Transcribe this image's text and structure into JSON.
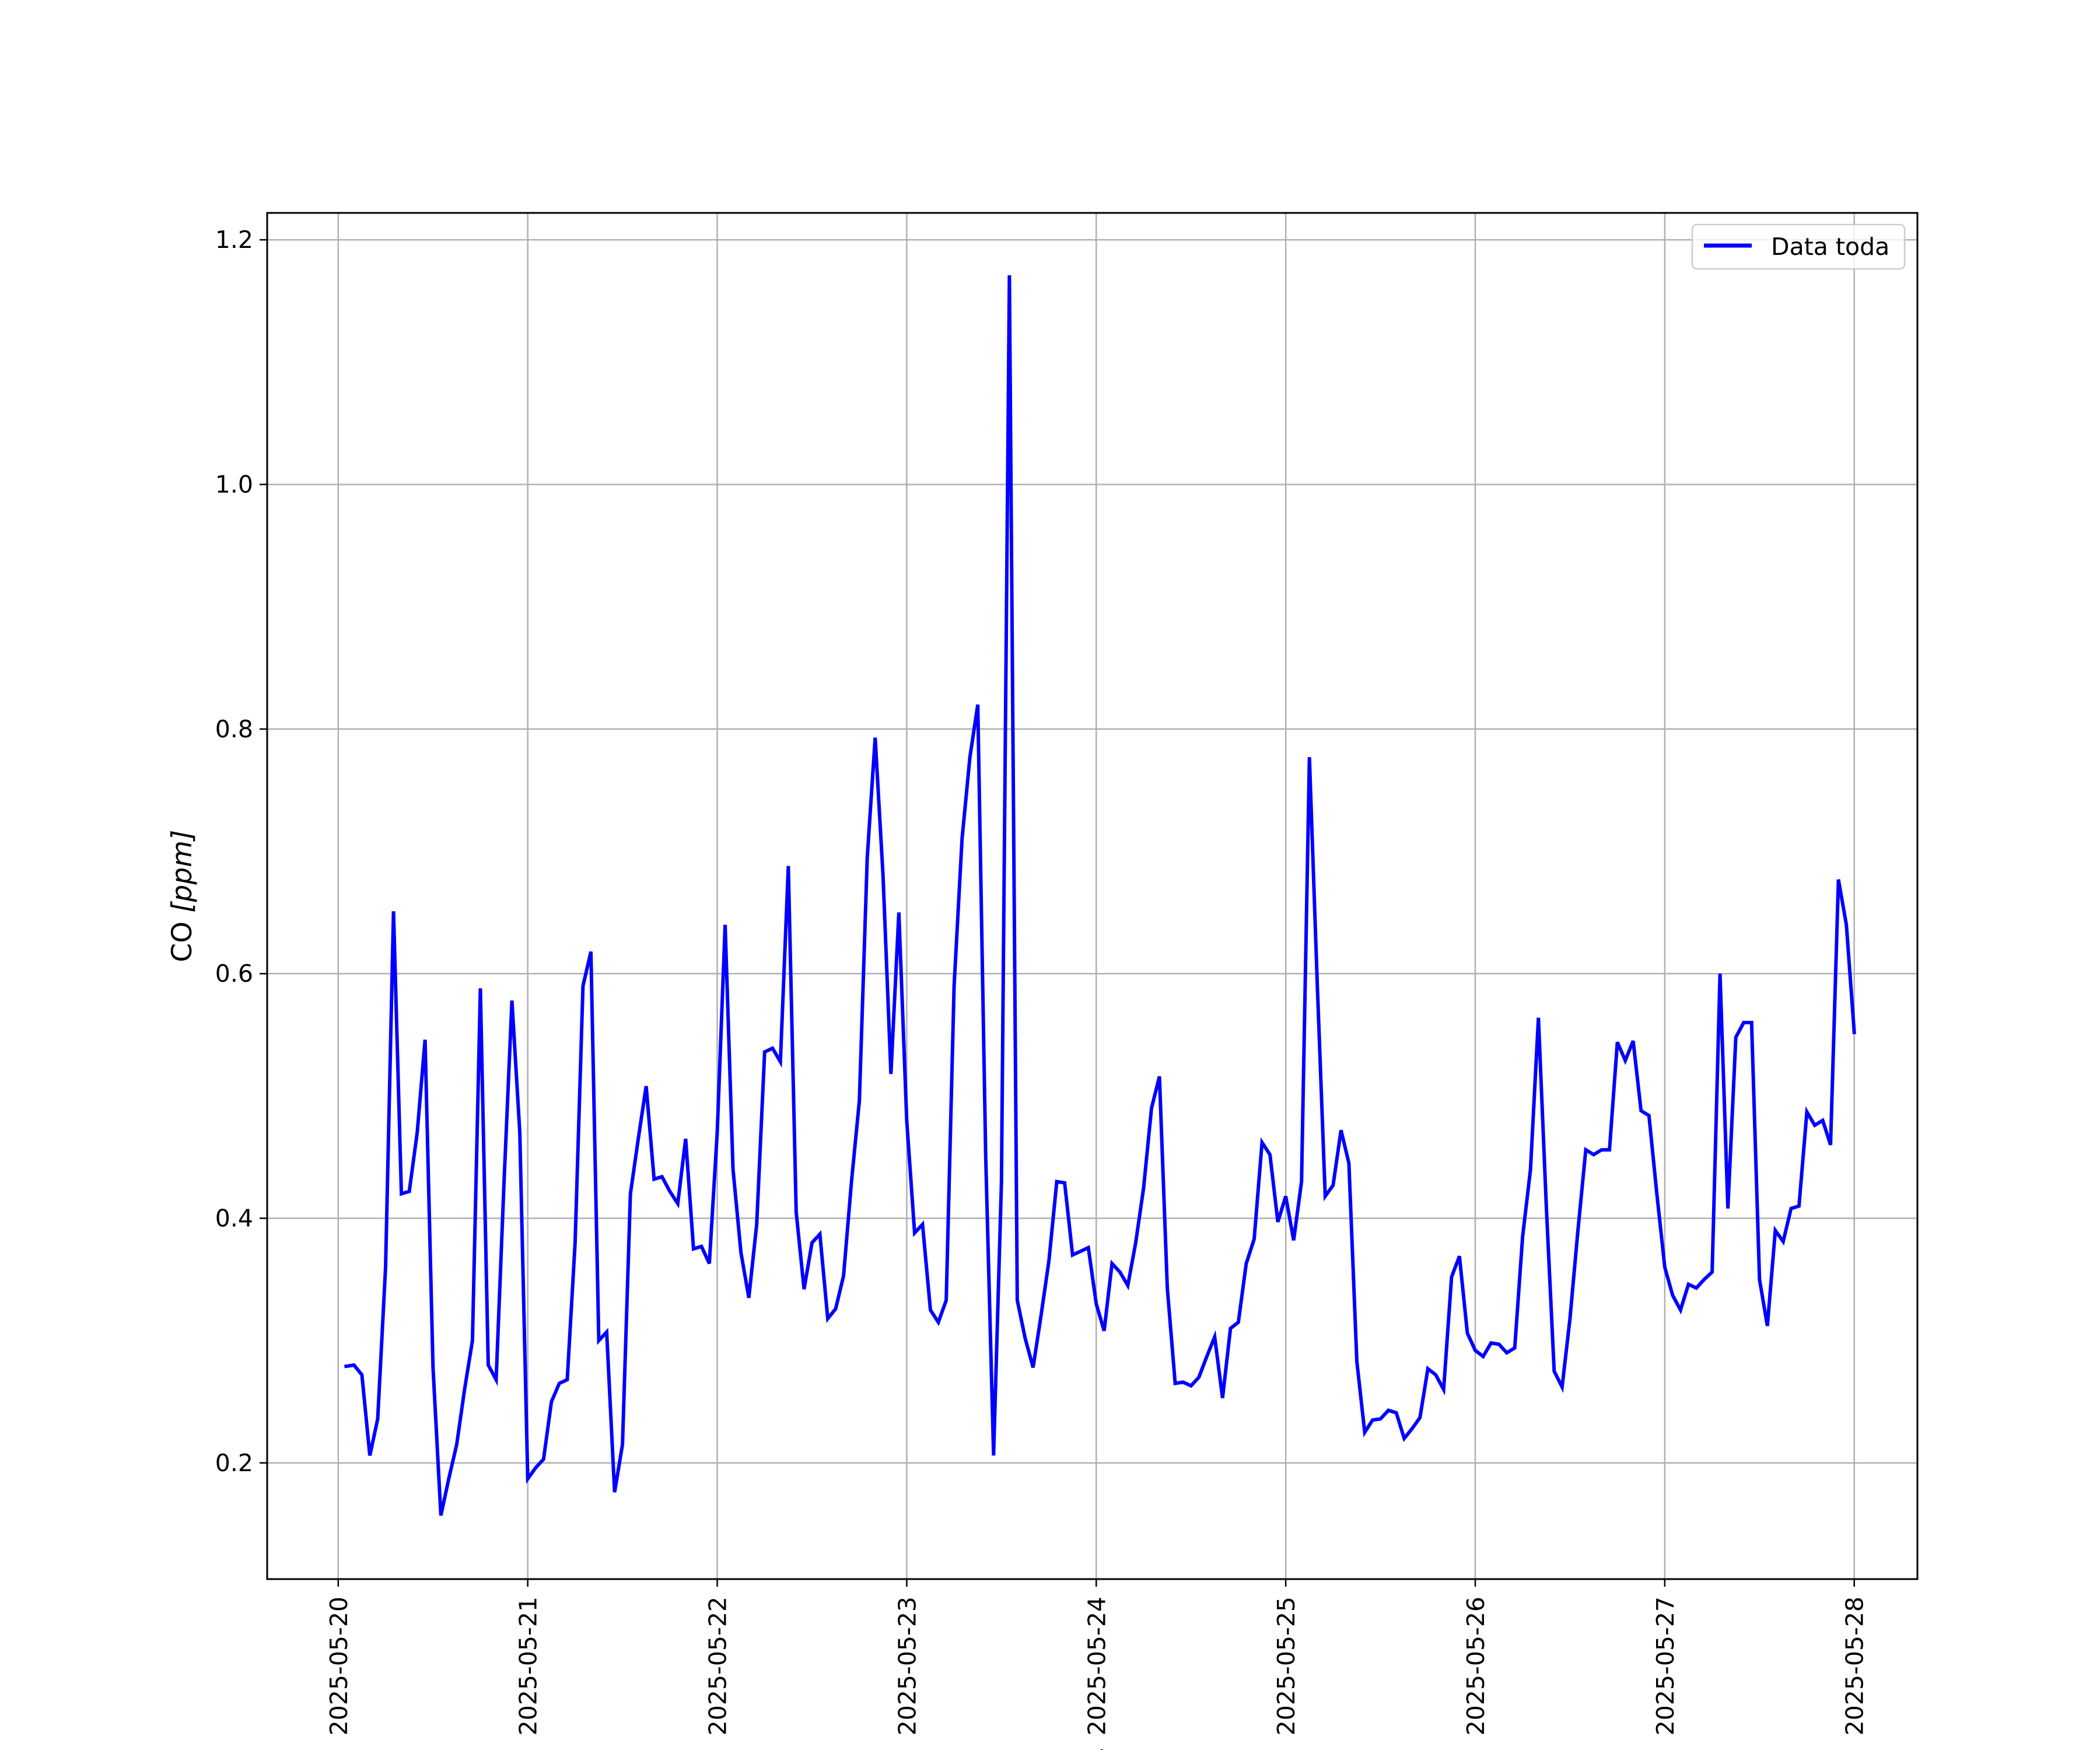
{
  "chart_data": {
    "type": "line",
    "title": "",
    "xlabel": "Fecha",
    "ylabel": "CO [ppm]",
    "ylabel_prefix": "CO ",
    "ylabel_unit": "[ppm]",
    "x_ticks": [
      "2025-05-20",
      "2025-05-21",
      "2025-05-22",
      "2025-05-23",
      "2025-05-24",
      "2025-05-25",
      "2025-05-26",
      "2025-05-27",
      "2025-05-28"
    ],
    "y_ticks": [
      "0.2",
      "0.4",
      "0.6",
      "0.8",
      "1.0",
      "1.2"
    ],
    "xlim": [
      "2025-05-19 15:00",
      "2025-05-28 08:00"
    ],
    "ylim": [
      0.105,
      1.222
    ],
    "grid": true,
    "legend_position": "top-right",
    "series": [
      {
        "name": "Data toda",
        "color": "#0000ff",
        "x": [
          "2025-05-20 01:00",
          "2025-05-20 02:00",
          "2025-05-20 03:00",
          "2025-05-20 04:00",
          "2025-05-20 05:00",
          "2025-05-20 06:00",
          "2025-05-20 07:00",
          "2025-05-20 08:00",
          "2025-05-20 09:00",
          "2025-05-20 10:00",
          "2025-05-20 11:00",
          "2025-05-20 12:00",
          "2025-05-20 13:00",
          "2025-05-20 14:00",
          "2025-05-20 15:00",
          "2025-05-20 16:00",
          "2025-05-20 17:00",
          "2025-05-20 18:00",
          "2025-05-20 19:00",
          "2025-05-20 20:00",
          "2025-05-20 21:00",
          "2025-05-20 22:00",
          "2025-05-20 23:00",
          "2025-05-21 00:00",
          "2025-05-21 01:00",
          "2025-05-21 02:00",
          "2025-05-21 03:00",
          "2025-05-21 04:00",
          "2025-05-21 05:00",
          "2025-05-21 06:00",
          "2025-05-21 07:00",
          "2025-05-21 08:00",
          "2025-05-21 09:00",
          "2025-05-21 10:00",
          "2025-05-21 11:00",
          "2025-05-21 12:00",
          "2025-05-21 13:00",
          "2025-05-21 14:00",
          "2025-05-21 15:00",
          "2025-05-21 16:00",
          "2025-05-21 17:00",
          "2025-05-21 18:00",
          "2025-05-21 19:00",
          "2025-05-21 20:00",
          "2025-05-21 21:00",
          "2025-05-21 22:00",
          "2025-05-21 23:00",
          "2025-05-22 00:00",
          "2025-05-22 01:00",
          "2025-05-22 02:00",
          "2025-05-22 03:00",
          "2025-05-22 04:00",
          "2025-05-22 05:00",
          "2025-05-22 06:00",
          "2025-05-22 07:00",
          "2025-05-22 08:00",
          "2025-05-22 09:00",
          "2025-05-22 10:00",
          "2025-05-22 11:00",
          "2025-05-22 12:00",
          "2025-05-22 13:00",
          "2025-05-22 14:00",
          "2025-05-22 15:00",
          "2025-05-22 16:00",
          "2025-05-22 17:00",
          "2025-05-22 18:00",
          "2025-05-22 19:00",
          "2025-05-22 20:00",
          "2025-05-22 21:00",
          "2025-05-22 22:00",
          "2025-05-22 23:00",
          "2025-05-23 00:00",
          "2025-05-23 01:00",
          "2025-05-23 02:00",
          "2025-05-23 03:00",
          "2025-05-23 04:00",
          "2025-05-23 05:00",
          "2025-05-23 06:00",
          "2025-05-23 07:00",
          "2025-05-23 08:00",
          "2025-05-23 09:00",
          "2025-05-23 10:00",
          "2025-05-23 11:00",
          "2025-05-23 12:00",
          "2025-05-23 13:00",
          "2025-05-23 14:00",
          "2025-05-23 15:00",
          "2025-05-23 16:00",
          "2025-05-23 17:00",
          "2025-05-23 18:00",
          "2025-05-23 19:00",
          "2025-05-23 20:00",
          "2025-05-23 21:00",
          "2025-05-23 22:00",
          "2025-05-23 23:00",
          "2025-05-24 00:00",
          "2025-05-24 01:00",
          "2025-05-24 02:00",
          "2025-05-24 03:00",
          "2025-05-24 04:00",
          "2025-05-24 05:00",
          "2025-05-24 06:00",
          "2025-05-24 07:00",
          "2025-05-24 08:00",
          "2025-05-24 09:00",
          "2025-05-24 10:00",
          "2025-05-24 11:00",
          "2025-05-24 12:00",
          "2025-05-24 13:00",
          "2025-05-24 14:00",
          "2025-05-24 15:00",
          "2025-05-24 16:00",
          "2025-05-24 17:00",
          "2025-05-24 18:00",
          "2025-05-24 19:00",
          "2025-05-24 20:00",
          "2025-05-24 21:00",
          "2025-05-24 22:00",
          "2025-05-24 23:00",
          "2025-05-25 00:00",
          "2025-05-25 01:00",
          "2025-05-25 02:00",
          "2025-05-25 03:00",
          "2025-05-25 04:00",
          "2025-05-25 05:00",
          "2025-05-25 06:00",
          "2025-05-25 07:00",
          "2025-05-25 08:00",
          "2025-05-25 09:00",
          "2025-05-25 10:00",
          "2025-05-25 11:00",
          "2025-05-25 12:00",
          "2025-05-25 13:00",
          "2025-05-25 14:00",
          "2025-05-25 15:00",
          "2025-05-25 16:00",
          "2025-05-25 17:00",
          "2025-05-25 18:00",
          "2025-05-25 19:00",
          "2025-05-25 20:00",
          "2025-05-25 21:00",
          "2025-05-25 22:00",
          "2025-05-25 23:00",
          "2025-05-26 00:00",
          "2025-05-26 01:00",
          "2025-05-26 02:00",
          "2025-05-26 03:00",
          "2025-05-26 04:00",
          "2025-05-26 05:00",
          "2025-05-26 06:00",
          "2025-05-26 07:00",
          "2025-05-26 08:00",
          "2025-05-26 09:00",
          "2025-05-26 10:00",
          "2025-05-26 11:00",
          "2025-05-26 12:00",
          "2025-05-26 13:00",
          "2025-05-26 14:00",
          "2025-05-26 15:00",
          "2025-05-26 16:00",
          "2025-05-26 17:00",
          "2025-05-26 18:00",
          "2025-05-26 19:00",
          "2025-05-26 20:00",
          "2025-05-26 21:00",
          "2025-05-26 22:00",
          "2025-05-26 23:00",
          "2025-05-27 00:00",
          "2025-05-27 01:00",
          "2025-05-27 02:00",
          "2025-05-27 03:00",
          "2025-05-27 04:00",
          "2025-05-27 05:00",
          "2025-05-27 06:00",
          "2025-05-27 07:00",
          "2025-05-27 08:00",
          "2025-05-27 09:00",
          "2025-05-27 10:00",
          "2025-05-27 11:00",
          "2025-05-27 12:00",
          "2025-05-27 13:00",
          "2025-05-27 14:00",
          "2025-05-27 15:00",
          "2025-05-27 16:00",
          "2025-05-27 17:00",
          "2025-05-27 18:00",
          "2025-05-27 19:00",
          "2025-05-27 20:00",
          "2025-05-27 21:00",
          "2025-05-27 22:00",
          "2025-05-27 23:00",
          "2025-05-28 00:00"
        ],
        "y": [
          0.279,
          0.28,
          0.272,
          0.206,
          0.236,
          0.36,
          0.651,
          0.42,
          0.422,
          0.47,
          0.546,
          0.278,
          0.157,
          0.187,
          0.215,
          0.26,
          0.3,
          0.588,
          0.28,
          0.268,
          0.43,
          0.578,
          0.47,
          0.187,
          0.196,
          0.203,
          0.25,
          0.265,
          0.268,
          0.38,
          0.59,
          0.618,
          0.3,
          0.307,
          0.176,
          0.215,
          0.42,
          0.465,
          0.508,
          0.432,
          0.434,
          0.422,
          0.412,
          0.465,
          0.375,
          0.377,
          0.363,
          0.47,
          0.64,
          0.44,
          0.372,
          0.335,
          0.395,
          0.536,
          0.539,
          0.528,
          0.688,
          0.405,
          0.342,
          0.38,
          0.387,
          0.318,
          0.326,
          0.353,
          0.43,
          0.496,
          0.695,
          0.793,
          0.68,
          0.518,
          0.65,
          0.48,
          0.388,
          0.395,
          0.325,
          0.315,
          0.333,
          0.59,
          0.71,
          0.777,
          0.82,
          0.45,
          0.206,
          0.43,
          1.171,
          0.333,
          0.302,
          0.278,
          0.32,
          0.365,
          0.43,
          0.429,
          0.37,
          0.373,
          0.376,
          0.33,
          0.308,
          0.363,
          0.356,
          0.345,
          0.38,
          0.425,
          0.49,
          0.516,
          0.343,
          0.265,
          0.266,
          0.263,
          0.27,
          0.287,
          0.303,
          0.253,
          0.31,
          0.315,
          0.363,
          0.383,
          0.462,
          0.452,
          0.397,
          0.418,
          0.382,
          0.43,
          0.777,
          0.59,
          0.418,
          0.427,
          0.472,
          0.445,
          0.283,
          0.225,
          0.235,
          0.236,
          0.243,
          0.241,
          0.22,
          0.228,
          0.237,
          0.277,
          0.272,
          0.26,
          0.352,
          0.369,
          0.306,
          0.292,
          0.287,
          0.298,
          0.297,
          0.29,
          0.294,
          0.385,
          0.44,
          0.564,
          0.41,
          0.275,
          0.262,
          0.318,
          0.39,
          0.456,
          0.452,
          0.456,
          0.456,
          0.544,
          0.529,
          0.545,
          0.488,
          0.484,
          0.42,
          0.36,
          0.337,
          0.325,
          0.346,
          0.343,
          0.35,
          0.356,
          0.6,
          0.408,
          0.548,
          0.56,
          0.56,
          0.35,
          0.312,
          0.39,
          0.381,
          0.408,
          0.41,
          0.487,
          0.476,
          0.48,
          0.46,
          0.677,
          0.64,
          0.552
        ]
      }
    ]
  }
}
